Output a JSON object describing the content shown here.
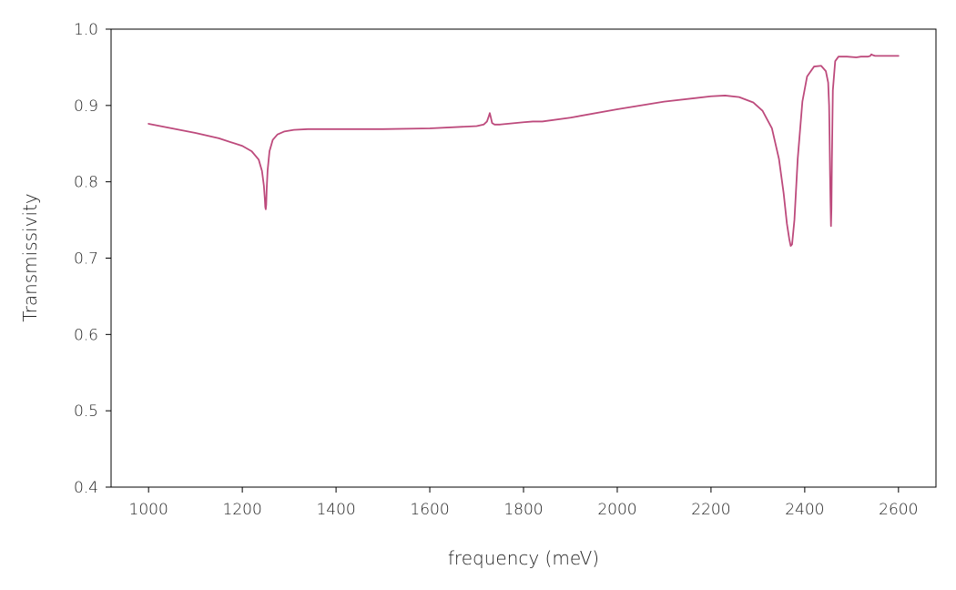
{
  "chart_data": {
    "type": "line",
    "title": "",
    "xlabel": "frequency (meV)",
    "ylabel": "Transmissivity",
    "xlim": [
      920,
      2680
    ],
    "ylim": [
      0.4,
      1.0
    ],
    "xticks": [
      1000,
      1200,
      1400,
      1600,
      1800,
      2000,
      2200,
      2400,
      2600
    ],
    "yticks": [
      0.4,
      0.5,
      0.6,
      0.7,
      0.8,
      0.9,
      1.0
    ],
    "xtick_labels": [
      "1000",
      "1200",
      "1400",
      "1600",
      "1800",
      "2000",
      "2200",
      "2400",
      "2600"
    ],
    "ytick_labels": [
      "0.4",
      "0.5",
      "0.6",
      "0.7",
      "0.8",
      "0.9",
      "1.0"
    ],
    "grid": false,
    "legend": "none",
    "colors": {
      "line": "#bd4a7c",
      "axes": "#000000",
      "text": "#222222"
    },
    "series": [
      {
        "x": [
          1000,
          1050,
          1100,
          1150,
          1200,
          1220,
          1235,
          1242,
          1246,
          1248,
          1249,
          1250,
          1251,
          1252,
          1254,
          1258,
          1265,
          1275,
          1290,
          1310,
          1340,
          1400,
          1500,
          1600,
          1700,
          1715,
          1722,
          1726,
          1728,
          1730,
          1733,
          1738,
          1750,
          1800,
          1820,
          1840,
          1900,
          2000,
          2100,
          2200,
          2230,
          2260,
          2290,
          2310,
          2330,
          2345,
          2355,
          2362,
          2367,
          2370,
          2373,
          2378,
          2385,
          2395,
          2405,
          2420,
          2435,
          2445,
          2450,
          2452,
          2453,
          2454,
          2455,
          2456,
          2457,
          2458,
          2460,
          2465,
          2472,
          2490,
          2510,
          2520,
          2535,
          2540,
          2542,
          2545,
          2550,
          2570,
          2600
        ],
        "y": [
          0.876,
          0.87,
          0.864,
          0.857,
          0.847,
          0.84,
          0.829,
          0.814,
          0.795,
          0.778,
          0.767,
          0.764,
          0.77,
          0.79,
          0.815,
          0.84,
          0.855,
          0.862,
          0.866,
          0.868,
          0.869,
          0.869,
          0.869,
          0.87,
          0.873,
          0.875,
          0.879,
          0.886,
          0.89,
          0.885,
          0.877,
          0.875,
          0.875,
          0.878,
          0.879,
          0.879,
          0.884,
          0.895,
          0.905,
          0.912,
          0.913,
          0.911,
          0.904,
          0.893,
          0.87,
          0.83,
          0.785,
          0.745,
          0.725,
          0.716,
          0.718,
          0.75,
          0.83,
          0.905,
          0.938,
          0.951,
          0.952,
          0.945,
          0.93,
          0.9,
          0.86,
          0.81,
          0.772,
          0.742,
          0.765,
          0.83,
          0.92,
          0.958,
          0.964,
          0.964,
          0.963,
          0.964,
          0.964,
          0.965,
          0.967,
          0.966,
          0.965,
          0.965,
          0.965
        ]
      }
    ]
  }
}
